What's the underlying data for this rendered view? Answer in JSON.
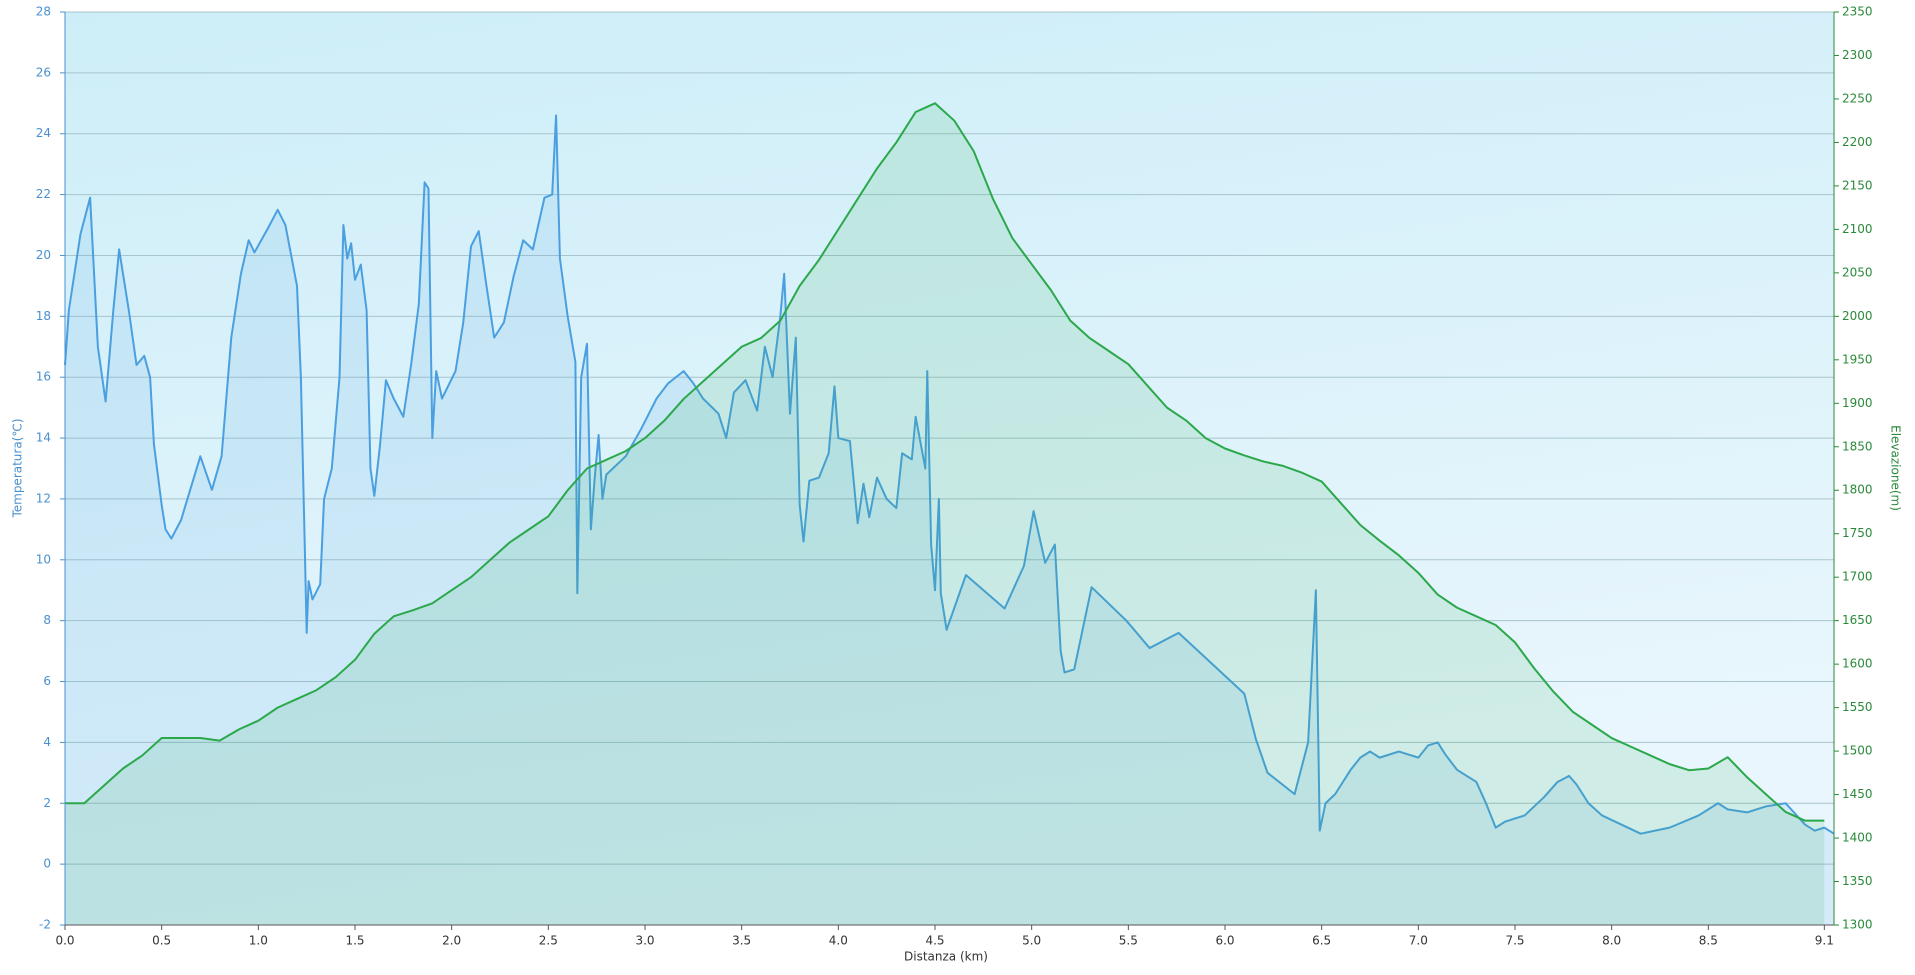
{
  "chart_data": {
    "type": "line",
    "x_label": "Distanza  (km)",
    "y_label": "Temperatura(℃)",
    "y2_label": "Elevazione(m)",
    "grid": true,
    "xlim": [
      0,
      9.15
    ],
    "xticks": [
      {
        "value": 0,
        "label": "0.0"
      },
      0.5,
      {
        "value": 1,
        "label": "1.0"
      },
      1.5,
      {
        "value": 2,
        "label": "2.0"
      },
      2.5,
      {
        "value": 3,
        "label": "3.0"
      },
      3.5,
      {
        "value": 4,
        "label": "4.0"
      },
      4.5,
      {
        "value": 5,
        "label": "5.0"
      },
      5.5,
      {
        "value": 6,
        "label": "6.0"
      },
      6.5,
      {
        "value": 7,
        "label": "7.0"
      },
      7.5,
      {
        "value": 8,
        "label": "8.0"
      },
      8.5,
      9.1
    ],
    "ylim": [
      -2,
      28
    ],
    "yticks": [
      -2,
      0,
      2,
      4,
      6,
      8,
      10,
      12,
      14,
      16,
      18,
      20,
      22,
      24,
      26,
      28
    ],
    "y2lim": [
      1300,
      2350
    ],
    "y2ticks": [
      1300,
      1350,
      1400,
      1450,
      1500,
      1550,
      1600,
      1650,
      1700,
      1750,
      1800,
      1850,
      1900,
      1950,
      2000,
      2050,
      2100,
      2150,
      2200,
      2250,
      2300,
      2350
    ],
    "series": [
      {
        "color": "#4a9fe0",
        "x": [
          0,
          0.02,
          0.08,
          0.13,
          0.17,
          0.21,
          0.25,
          0.28,
          0.33,
          0.37,
          0.41,
          0.44,
          0.46,
          0.48,
          0.5,
          0.52,
          0.55,
          0.6,
          0.7,
          0.76,
          0.81,
          0.86,
          0.91,
          0.95,
          0.98,
          1.05,
          1.1,
          1.14,
          1.2,
          1.22,
          1.24,
          1.25,
          1.26,
          1.28,
          1.32,
          1.34,
          1.38,
          1.42,
          1.44,
          1.46,
          1.48,
          1.5,
          1.53,
          1.56,
          1.58,
          1.6,
          1.63,
          1.66,
          1.7,
          1.75,
          1.79,
          1.83,
          1.86,
          1.88,
          1.9,
          1.92,
          1.95,
          2.02,
          2.06,
          2.1,
          2.14,
          2.18,
          2.22,
          2.27,
          2.32,
          2.37,
          2.42,
          2.48,
          2.52,
          2.54,
          2.56,
          2.6,
          2.64,
          2.65,
          2.67,
          2.7,
          2.72,
          2.74,
          2.76,
          2.78,
          2.8,
          2.9,
          2.98,
          3.06,
          3.12,
          3.2,
          3.25,
          3.3,
          3.38,
          3.42,
          3.46,
          3.52,
          3.58,
          3.62,
          3.66,
          3.7,
          3.72,
          3.75,
          3.78,
          3.8,
          3.82,
          3.85,
          3.9,
          3.95,
          3.98,
          4.0,
          4.06,
          4.1,
          4.13,
          4.16,
          4.2,
          4.25,
          4.3,
          4.33,
          4.38,
          4.4,
          4.45,
          4.46,
          4.48,
          4.5,
          4.52,
          4.53,
          4.56,
          4.66,
          4.86,
          4.96,
          5.01,
          5.07,
          5.12,
          5.15,
          5.17,
          5.22,
          5.31,
          5.49,
          5.61,
          5.76,
          6.1,
          6.16,
          6.22,
          6.36,
          6.43,
          6.47,
          6.49,
          6.52,
          6.57,
          6.6,
          6.65,
          6.7,
          6.75,
          6.8,
          6.9,
          7.0,
          7.05,
          7.1,
          7.14,
          7.2,
          7.3,
          7.35,
          7.4,
          7.45,
          7.55,
          7.65,
          7.72,
          7.78,
          7.82,
          7.88,
          7.95,
          8.05,
          8.15,
          8.3,
          8.45,
          8.55,
          8.6,
          8.7,
          8.8,
          8.9,
          9.0,
          9.05,
          9.1,
          9.15
        ],
        "values": [
          16.4,
          18.2,
          20.7,
          21.9,
          17.0,
          15.2,
          18.2,
          20.2,
          18.2,
          16.4,
          16.7,
          16.0,
          13.8,
          12.8,
          11.8,
          11.0,
          10.7,
          11.3,
          13.4,
          12.3,
          13.4,
          17.3,
          19.4,
          20.5,
          20.1,
          20.9,
          21.5,
          21.0,
          19.0,
          16.0,
          10.5,
          7.6,
          9.3,
          8.7,
          9.2,
          12.0,
          13.0,
          16.0,
          21.0,
          19.9,
          20.4,
          19.2,
          19.7,
          18.2,
          13.0,
          12.1,
          13.8,
          15.9,
          15.3,
          14.7,
          16.4,
          18.4,
          22.4,
          22.2,
          14.0,
          16.2,
          15.3,
          16.2,
          17.8,
          20.3,
          20.8,
          19.0,
          17.3,
          17.8,
          19.3,
          20.5,
          20.2,
          21.9,
          22.0,
          24.6,
          19.9,
          18.0,
          16.5,
          8.9,
          16.0,
          17.1,
          11.0,
          12.7,
          14.1,
          12.0,
          12.8,
          13.4,
          14.3,
          15.3,
          15.8,
          16.2,
          15.8,
          15.3,
          14.8,
          14.0,
          15.5,
          15.9,
          14.9,
          17.0,
          16.0,
          18.0,
          19.4,
          14.8,
          17.3,
          11.8,
          10.6,
          12.6,
          12.7,
          13.5,
          15.7,
          14.0,
          13.9,
          11.2,
          12.5,
          11.4,
          12.7,
          12.0,
          11.7,
          13.5,
          13.3,
          14.7,
          13.0,
          16.2,
          10.5,
          9.0,
          12.0,
          8.9,
          7.7,
          9.5,
          8.4,
          9.8,
          11.6,
          9.9,
          10.5,
          7.0,
          6.3,
          6.4,
          9.1,
          8.0,
          7.1,
          7.6,
          5.6,
          4.1,
          3.0,
          2.3,
          4.0,
          9.0,
          1.1,
          2.0,
          2.3,
          2.6,
          3.1,
          3.5,
          3.7,
          3.5,
          3.7,
          3.5,
          3.9,
          4.0,
          3.6,
          3.1,
          2.7,
          2.0,
          1.2,
          1.4,
          1.6,
          2.2,
          2.7,
          2.9,
          2.6,
          2.0,
          1.6,
          1.3,
          1.0,
          1.2,
          1.6,
          2.0,
          1.8,
          1.7,
          1.9,
          2.0,
          1.3,
          1.1,
          1.2,
          1.0
        ]
      },
      {
        "color": "#2aa84a",
        "axis": "y2",
        "x": [
          0,
          0.1,
          0.2,
          0.3,
          0.4,
          0.5,
          0.6,
          0.7,
          0.8,
          0.9,
          1.0,
          1.1,
          1.2,
          1.3,
          1.4,
          1.5,
          1.6,
          1.7,
          1.8,
          1.9,
          2.0,
          2.1,
          2.2,
          2.3,
          2.4,
          2.5,
          2.6,
          2.7,
          2.8,
          2.9,
          3.0,
          3.1,
          3.2,
          3.3,
          3.4,
          3.5,
          3.6,
          3.7,
          3.8,
          3.9,
          4.0,
          4.1,
          4.2,
          4.3,
          4.4,
          4.5,
          4.6,
          4.7,
          4.8,
          4.9,
          5.0,
          5.1,
          5.2,
          5.3,
          5.4,
          5.5,
          5.6,
          5.7,
          5.8,
          5.9,
          6.0,
          6.1,
          6.2,
          6.3,
          6.4,
          6.5,
          6.6,
          6.7,
          6.8,
          6.9,
          7.0,
          7.1,
          7.2,
          7.3,
          7.4,
          7.5,
          7.6,
          7.7,
          7.8,
          7.9,
          8.0,
          8.1,
          8.2,
          8.3,
          8.4,
          8.5,
          8.6,
          8.7,
          8.8,
          8.9,
          9.0,
          9.1
        ],
        "values": [
          1440,
          1440,
          1460,
          1480,
          1495,
          1515,
          1515,
          1515,
          1512,
          1525,
          1535,
          1550,
          1560,
          1570,
          1585,
          1605,
          1635,
          1655,
          1662,
          1670,
          1685,
          1700,
          1720,
          1740,
          1755,
          1770,
          1800,
          1825,
          1835,
          1845,
          1860,
          1880,
          1905,
          1925,
          1945,
          1965,
          1975,
          1995,
          2035,
          2065,
          2100,
          2135,
          2170,
          2200,
          2235,
          2245,
          2225,
          2190,
          2135,
          2090,
          2060,
          2030,
          1995,
          1975,
          1960,
          1945,
          1920,
          1895,
          1880,
          1860,
          1848,
          1840,
          1833,
          1828,
          1820,
          1810,
          1785,
          1760,
          1742,
          1725,
          1705,
          1680,
          1665,
          1655,
          1645,
          1625,
          1595,
          1568,
          1545,
          1530,
          1515,
          1505,
          1495,
          1485,
          1478,
          1480,
          1493,
          1470,
          1450,
          1430,
          1420,
          1420
        ]
      }
    ]
  }
}
